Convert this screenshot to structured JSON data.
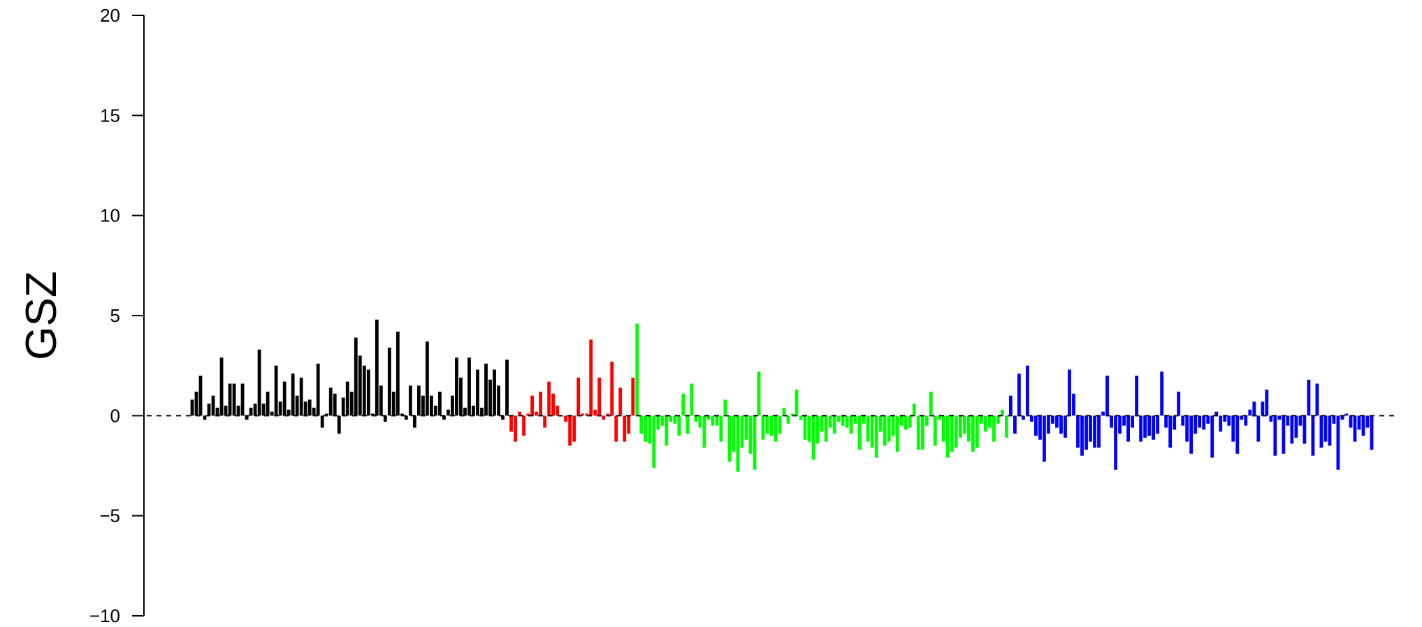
{
  "chart_data": {
    "type": "bar",
    "title": "",
    "xlabel": "",
    "ylabel": "GSZ",
    "ylim": [
      -10,
      20
    ],
    "y_ticks": [
      -10,
      -5,
      0,
      5,
      10,
      15,
      20
    ],
    "y_tick_labels": [
      "−10",
      "−5",
      "0",
      "5",
      "10",
      "15",
      "20"
    ],
    "reference_line": {
      "y": 0,
      "style": "dashed",
      "color": "#000000"
    },
    "grid": false,
    "legend": "none",
    "series": [
      {
        "color": "#000000",
        "values": [
          0.8,
          1.2,
          2.0,
          -0.2,
          0.6,
          1.0,
          0.4,
          2.9,
          0.5,
          1.6,
          1.6,
          0.5,
          1.6,
          -0.2,
          0.4,
          0.6,
          3.3,
          0.6,
          1.2,
          0.2,
          2.5,
          0.7,
          1.7,
          0.3,
          2.1,
          1.0,
          1.9,
          0.7,
          0.8,
          0.4,
          2.6,
          -0.6,
          0.1,
          1.4,
          1.1,
          -0.9,
          0.9,
          1.7,
          1.2,
          3.9,
          3.0,
          2.5,
          2.3,
          0.1,
          4.8,
          1.5,
          -0.3,
          3.4,
          1.2,
          4.2,
          0.1,
          -0.2,
          1.5,
          -0.6,
          1.5,
          1.0,
          3.7,
          1.0,
          0.5,
          1.2,
          -0.2,
          0.3,
          1.0,
          2.9,
          1.9,
          0.4,
          2.9,
          0.5,
          2.3,
          0.4,
          2.6,
          1.8,
          2.3,
          1.5,
          -0.2,
          2.8
        ]
      },
      {
        "color": "#ff0000",
        "values": [
          -0.8,
          -1.3,
          0.2,
          -1.0,
          0.1,
          1.0,
          0.2,
          1.2,
          -0.6,
          1.7,
          1.1,
          0.5,
          0.0,
          -0.3,
          -1.5,
          -1.3,
          1.9,
          0.1,
          0.1,
          3.8,
          0.3,
          1.9,
          -0.2,
          0.1,
          2.7,
          -1.3,
          1.4,
          -1.3,
          -0.9,
          1.9
        ]
      },
      {
        "color": "#00ff00",
        "values": [
          4.6,
          -0.9,
          -1.3,
          -1.4,
          -2.6,
          -0.7,
          -0.5,
          -1.5,
          -0.3,
          -0.4,
          -1.0,
          1.1,
          -0.9,
          1.6,
          -0.3,
          -0.6,
          -1.6,
          -0.2,
          -0.5,
          -0.5,
          -1.3,
          0.8,
          -2.3,
          -1.8,
          -2.8,
          -1.6,
          -1.2,
          -1.9,
          -2.7,
          2.2,
          -1.2,
          -0.9,
          -1.0,
          -1.3,
          -0.9,
          0.4,
          -0.4,
          0.1,
          1.3,
          -0.2,
          -1.2,
          -1.3,
          -2.2,
          -1.4,
          -0.8,
          -1.3,
          -0.6,
          -0.9,
          -0.3,
          -0.5,
          -0.6,
          -0.9,
          -0.4,
          -1.7,
          -0.4,
          -1.3,
          -1.6,
          -2.1,
          -0.8,
          -1.5,
          -1.3,
          -1.0,
          -1.8,
          -0.5,
          -0.7,
          -0.6,
          0.6,
          -1.7,
          -1.7,
          -0.5,
          1.2,
          -1.5,
          -0.2,
          -1.3,
          -2.1,
          -1.8,
          -1.6,
          -1.1,
          -0.9,
          -1.3,
          -1.8,
          -1.6,
          -0.4,
          -0.8,
          -0.6,
          -1.3,
          -0.4,
          0.3,
          -1.1
        ]
      },
      {
        "color": "#0000ff",
        "values": [
          1.0,
          -0.9,
          2.1,
          -0.2,
          2.5,
          -0.3,
          -1.0,
          -1.2,
          -2.3,
          -0.9,
          -0.4,
          -0.6,
          -0.9,
          -1.1,
          2.3,
          1.1,
          -1.6,
          -2.0,
          -1.7,
          -1.3,
          -1.6,
          -1.6,
          0.2,
          2.0,
          -0.6,
          -2.7,
          -0.9,
          -0.5,
          -1.3,
          -0.6,
          2.0,
          -1.3,
          -1.1,
          -1.0,
          -1.2,
          -0.9,
          2.2,
          -0.6,
          -1.6,
          -0.7,
          1.2,
          -0.5,
          -1.3,
          -1.9,
          -0.9,
          -0.6,
          -0.7,
          -0.4,
          -2.1,
          0.2,
          -0.8,
          -0.3,
          -0.5,
          -1.3,
          -1.9,
          -0.2,
          -0.5,
          0.3,
          0.7,
          -1.3,
          0.7,
          1.3,
          -0.3,
          -2.0,
          -0.2,
          -1.9,
          -0.5,
          -1.4,
          -1.1,
          -0.5,
          -1.4,
          1.8,
          -2.0,
          1.6,
          -1.6,
          -1.3,
          -1.5,
          -0.4,
          -2.7,
          -0.2,
          0.1,
          -0.6,
          -1.3,
          -0.7,
          -1.0,
          -0.6,
          -1.7
        ]
      }
    ]
  }
}
